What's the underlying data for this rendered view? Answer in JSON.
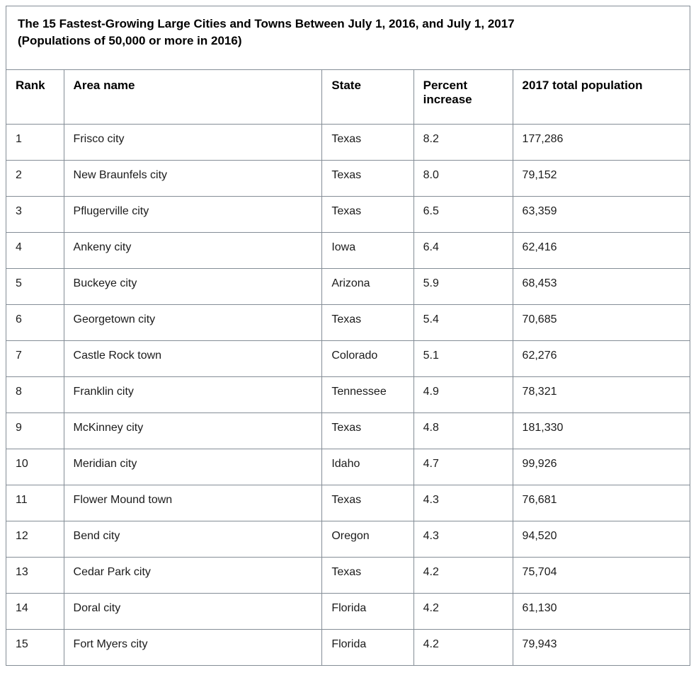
{
  "page": {
    "background_color": "#ffffff",
    "border_color": "#848d96",
    "text_color": "#1b1b1b"
  },
  "chart_data": {
    "type": "table",
    "title": "The 15 Fastest-Growing Large Cities and Towns Between July 1, 2016, and July 1, 2017 (Populations of 50,000 or more in 2016)",
    "title_line1": "The 15 Fastest-Growing Large Cities and Towns Between July 1, 2016, and July 1, 2017",
    "title_line2": "(Populations of 50,000 or more in 2016)",
    "columns": [
      "Rank",
      "Area name",
      "State",
      "Percent increase",
      "2017 total population"
    ],
    "rows": [
      {
        "rank": "1",
        "area": "Frisco city",
        "state": "Texas",
        "percent": "8.2",
        "population": "177,286"
      },
      {
        "rank": "2",
        "area": "New Braunfels city",
        "state": "Texas",
        "percent": "8.0",
        "population": "79,152"
      },
      {
        "rank": "3",
        "area": "Pflugerville city",
        "state": "Texas",
        "percent": "6.5",
        "population": "63,359"
      },
      {
        "rank": "4",
        "area": "Ankeny city",
        "state": "Iowa",
        "percent": "6.4",
        "population": "62,416"
      },
      {
        "rank": "5",
        "area": "Buckeye city",
        "state": "Arizona",
        "percent": "5.9",
        "population": "68,453"
      },
      {
        "rank": "6",
        "area": "Georgetown city",
        "state": "Texas",
        "percent": "5.4",
        "population": "70,685"
      },
      {
        "rank": "7",
        "area": "Castle Rock town",
        "state": "Colorado",
        "percent": "5.1",
        "population": "62,276"
      },
      {
        "rank": "8",
        "area": "Franklin city",
        "state": "Tennessee",
        "percent": "4.9",
        "population": "78,321"
      },
      {
        "rank": "9",
        "area": "McKinney city",
        "state": "Texas",
        "percent": "4.8",
        "population": "181,330"
      },
      {
        "rank": "10",
        "area": "Meridian city",
        "state": "Idaho",
        "percent": "4.7",
        "population": "99,926"
      },
      {
        "rank": "11",
        "area": "Flower Mound town",
        "state": "Texas",
        "percent": "4.3",
        "population": "76,681"
      },
      {
        "rank": "12",
        "area": "Bend city",
        "state": "Oregon",
        "percent": "4.3",
        "population": "94,520"
      },
      {
        "rank": "13",
        "area": "Cedar Park city",
        "state": "Texas",
        "percent": "4.2",
        "population": "75,704"
      },
      {
        "rank": "14",
        "area": "Doral city",
        "state": "Florida",
        "percent": "4.2",
        "population": "61,130"
      },
      {
        "rank": "15",
        "area": "Fort Myers city",
        "state": "Florida",
        "percent": "4.2",
        "population": "79,943"
      }
    ]
  }
}
